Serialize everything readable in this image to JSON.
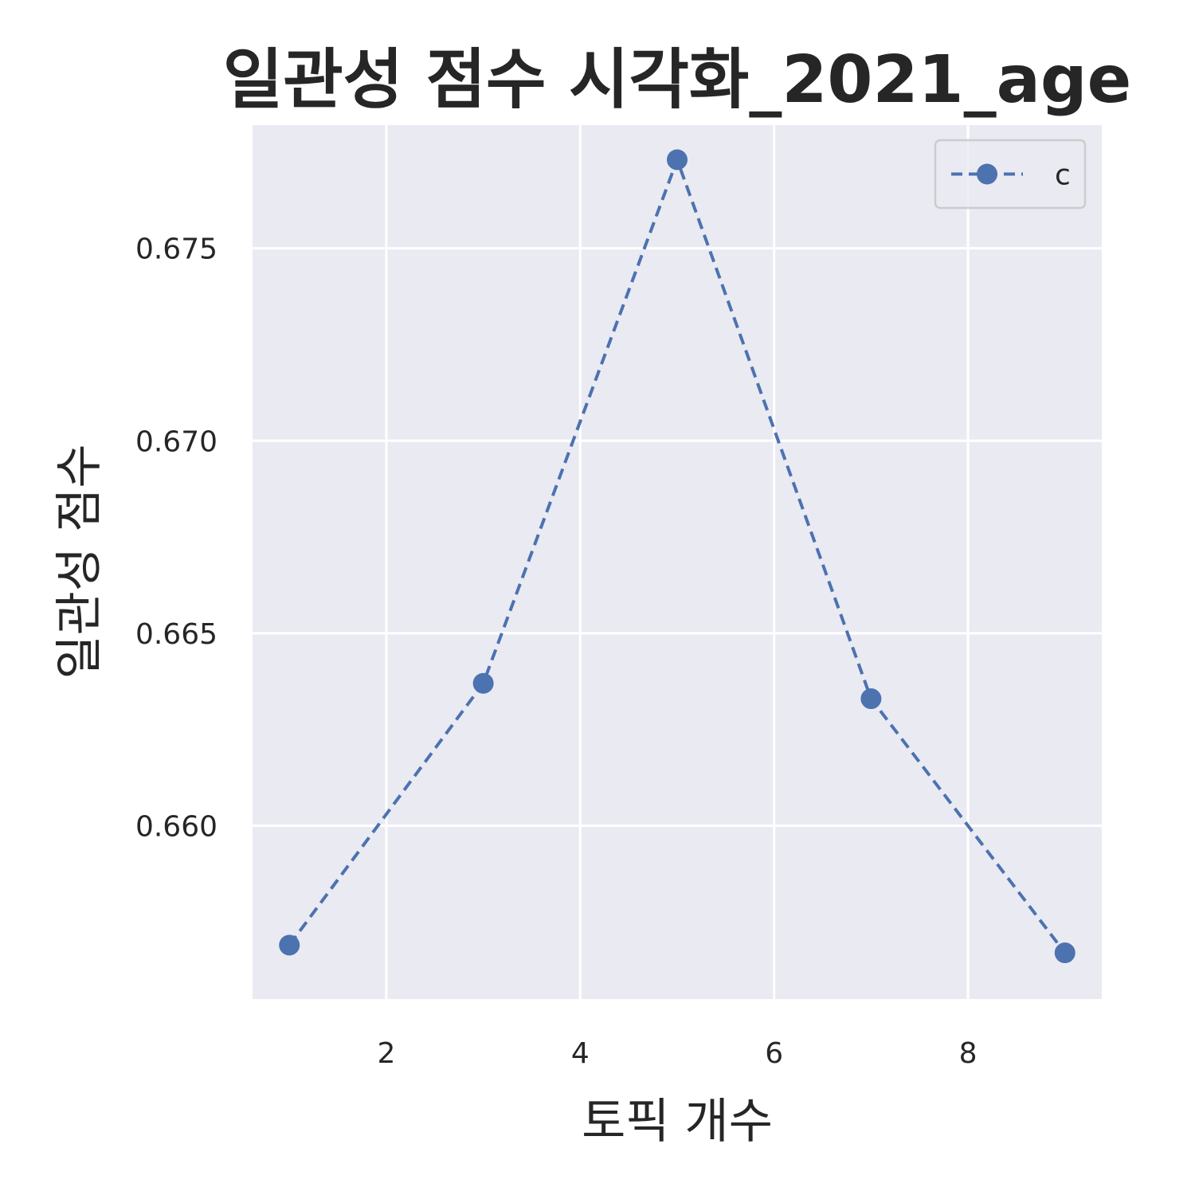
{
  "chart_data": {
    "type": "line",
    "title": "일관성 점수 시각화_2021_age",
    "xlabel": "토픽 개수",
    "ylabel": "일관성 점수",
    "x": [
      1,
      3,
      5,
      7,
      9
    ],
    "series": [
      {
        "name": "c",
        "values": [
          0.6569,
          0.6637,
          0.6773,
          0.6633,
          0.6567
        ]
      }
    ],
    "xlim": [
      0.62,
      9.38
    ],
    "ylim": [
      0.6555,
      0.6782
    ],
    "xticks": [
      2,
      4,
      6,
      8
    ],
    "yticks": [
      0.66,
      0.665,
      0.67,
      0.675
    ],
    "xtick_labels": [
      "2",
      "4",
      "6",
      "8"
    ],
    "ytick_labels": [
      "0.660",
      "0.665",
      "0.670",
      "0.675"
    ],
    "grid": true,
    "legend_position": "top-right",
    "colors": {
      "series": "#4c72b0",
      "background": "#eaeaf2",
      "grid": "#ffffff"
    },
    "line_style": "dashed",
    "marker": "circle"
  }
}
